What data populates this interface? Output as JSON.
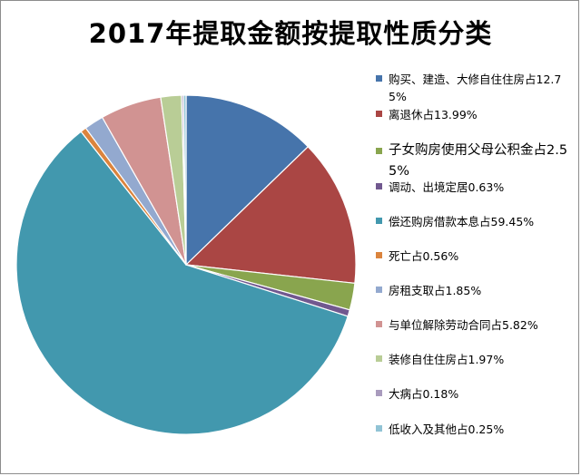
{
  "chart_data": {
    "type": "pie",
    "title": "2017年提取金额按提取性质分类",
    "legend_position": "right",
    "slices": [
      {
        "label": "购买、建造、大修自住住房占12.75%",
        "value": 12.75,
        "color": "#4674ab"
      },
      {
        "label": "离退休占13.99%",
        "value": 13.99,
        "color": "#aa4644"
      },
      {
        "label": "子女购房使用父母公积金占2.55%",
        "value": 2.55,
        "color": "#89a54e"
      },
      {
        "label": "调动、出境定居0.63%",
        "value": 0.63,
        "color": "#71588f"
      },
      {
        "label": "偿还购房借款本息占59.45%",
        "value": 59.45,
        "color": "#4298ae"
      },
      {
        "label": "死亡占0.56%",
        "value": 0.56,
        "color": "#db843d"
      },
      {
        "label": "房租支取占1.85%",
        "value": 1.85,
        "color": "#93a9cf"
      },
      {
        "label": "与单位解除劳动合同占5.82%",
        "value": 5.82,
        "color": "#d19392"
      },
      {
        "label": "装修自住住房占1.97%",
        "value": 1.97,
        "color": "#b9cd96"
      },
      {
        "label": "大病占0.18%",
        "value": 0.18,
        "color": "#a99bbd"
      },
      {
        "label": "低收入及其他占0.25%",
        "value": 0.25,
        "color": "#91c3d5"
      }
    ]
  }
}
